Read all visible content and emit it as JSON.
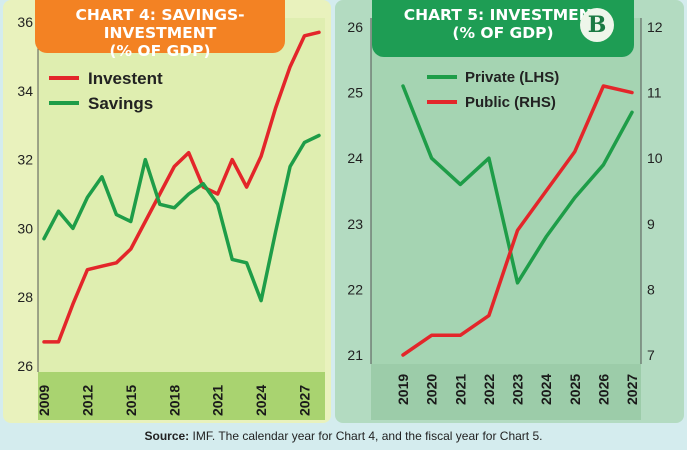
{
  "source_label": "Source:",
  "source_text": "IMF. The calendar year for Chart 4, and the fiscal year for Chart 5.",
  "logo_letter": "B",
  "chart_data": [
    {
      "type": "line",
      "title_line1": "CHART 4: SAVINGS-INVESTMENT",
      "title_line2": "(% OF GDP)",
      "x": [
        2009,
        2010,
        2011,
        2012,
        2013,
        2014,
        2015,
        2016,
        2017,
        2018,
        2019,
        2020,
        2021,
        2022,
        2023,
        2024,
        2025,
        2026,
        2027,
        2028
      ],
      "x_tick_labels": [
        "2009",
        "2012",
        "2015",
        "2018",
        "2021",
        "2024",
        "2027"
      ],
      "y_ticks": [
        "26",
        "28",
        "30",
        "32",
        "34",
        "36"
      ],
      "ylim": [
        25.5,
        36.2
      ],
      "series": [
        {
          "name": "Investent",
          "color": "#e3262a",
          "values": [
            26.7,
            26.7,
            27.8,
            28.8,
            28.9,
            29.0,
            29.4,
            30.2,
            31.0,
            31.8,
            32.2,
            31.2,
            31.0,
            32.0,
            31.2,
            32.1,
            33.5,
            34.7,
            35.6,
            35.7
          ]
        },
        {
          "name": "Savings",
          "color": "#1e9d48",
          "values": [
            29.7,
            30.5,
            30.0,
            30.9,
            31.5,
            30.4,
            30.2,
            32.0,
            30.7,
            30.6,
            31.0,
            31.3,
            30.7,
            29.1,
            29.0,
            27.9,
            29.9,
            31.8,
            32.5,
            32.7
          ]
        }
      ]
    },
    {
      "type": "line",
      "title_line1": "CHART 5: INVESTMENT",
      "title_line2": "(% OF GDP)",
      "x": [
        2019,
        2020,
        2021,
        2022,
        2023,
        2024,
        2025,
        2026,
        2027
      ],
      "x_tick_labels": [
        "2019",
        "2020",
        "2021",
        "2022",
        "2023",
        "2024",
        "2025",
        "2026",
        "2027"
      ],
      "y_left_ticks": [
        "21",
        "22",
        "23",
        "24",
        "25",
        "26"
      ],
      "y_right_ticks": [
        "7",
        "8",
        "9",
        "10",
        "11",
        "12"
      ],
      "ylim_left": [
        21,
        26
      ],
      "ylim_right": [
        7,
        12
      ],
      "series": [
        {
          "name": "Private (LHS)",
          "axis": "left",
          "color": "#1e9d48",
          "values": [
            25.1,
            24.0,
            23.6,
            24.0,
            22.1,
            22.8,
            23.4,
            23.9,
            24.7
          ]
        },
        {
          "name": "Public (RHS)",
          "axis": "right",
          "color": "#e3262a",
          "values": [
            7.0,
            7.3,
            7.3,
            7.6,
            8.9,
            9.5,
            10.1,
            11.1,
            11.0
          ]
        }
      ]
    }
  ]
}
